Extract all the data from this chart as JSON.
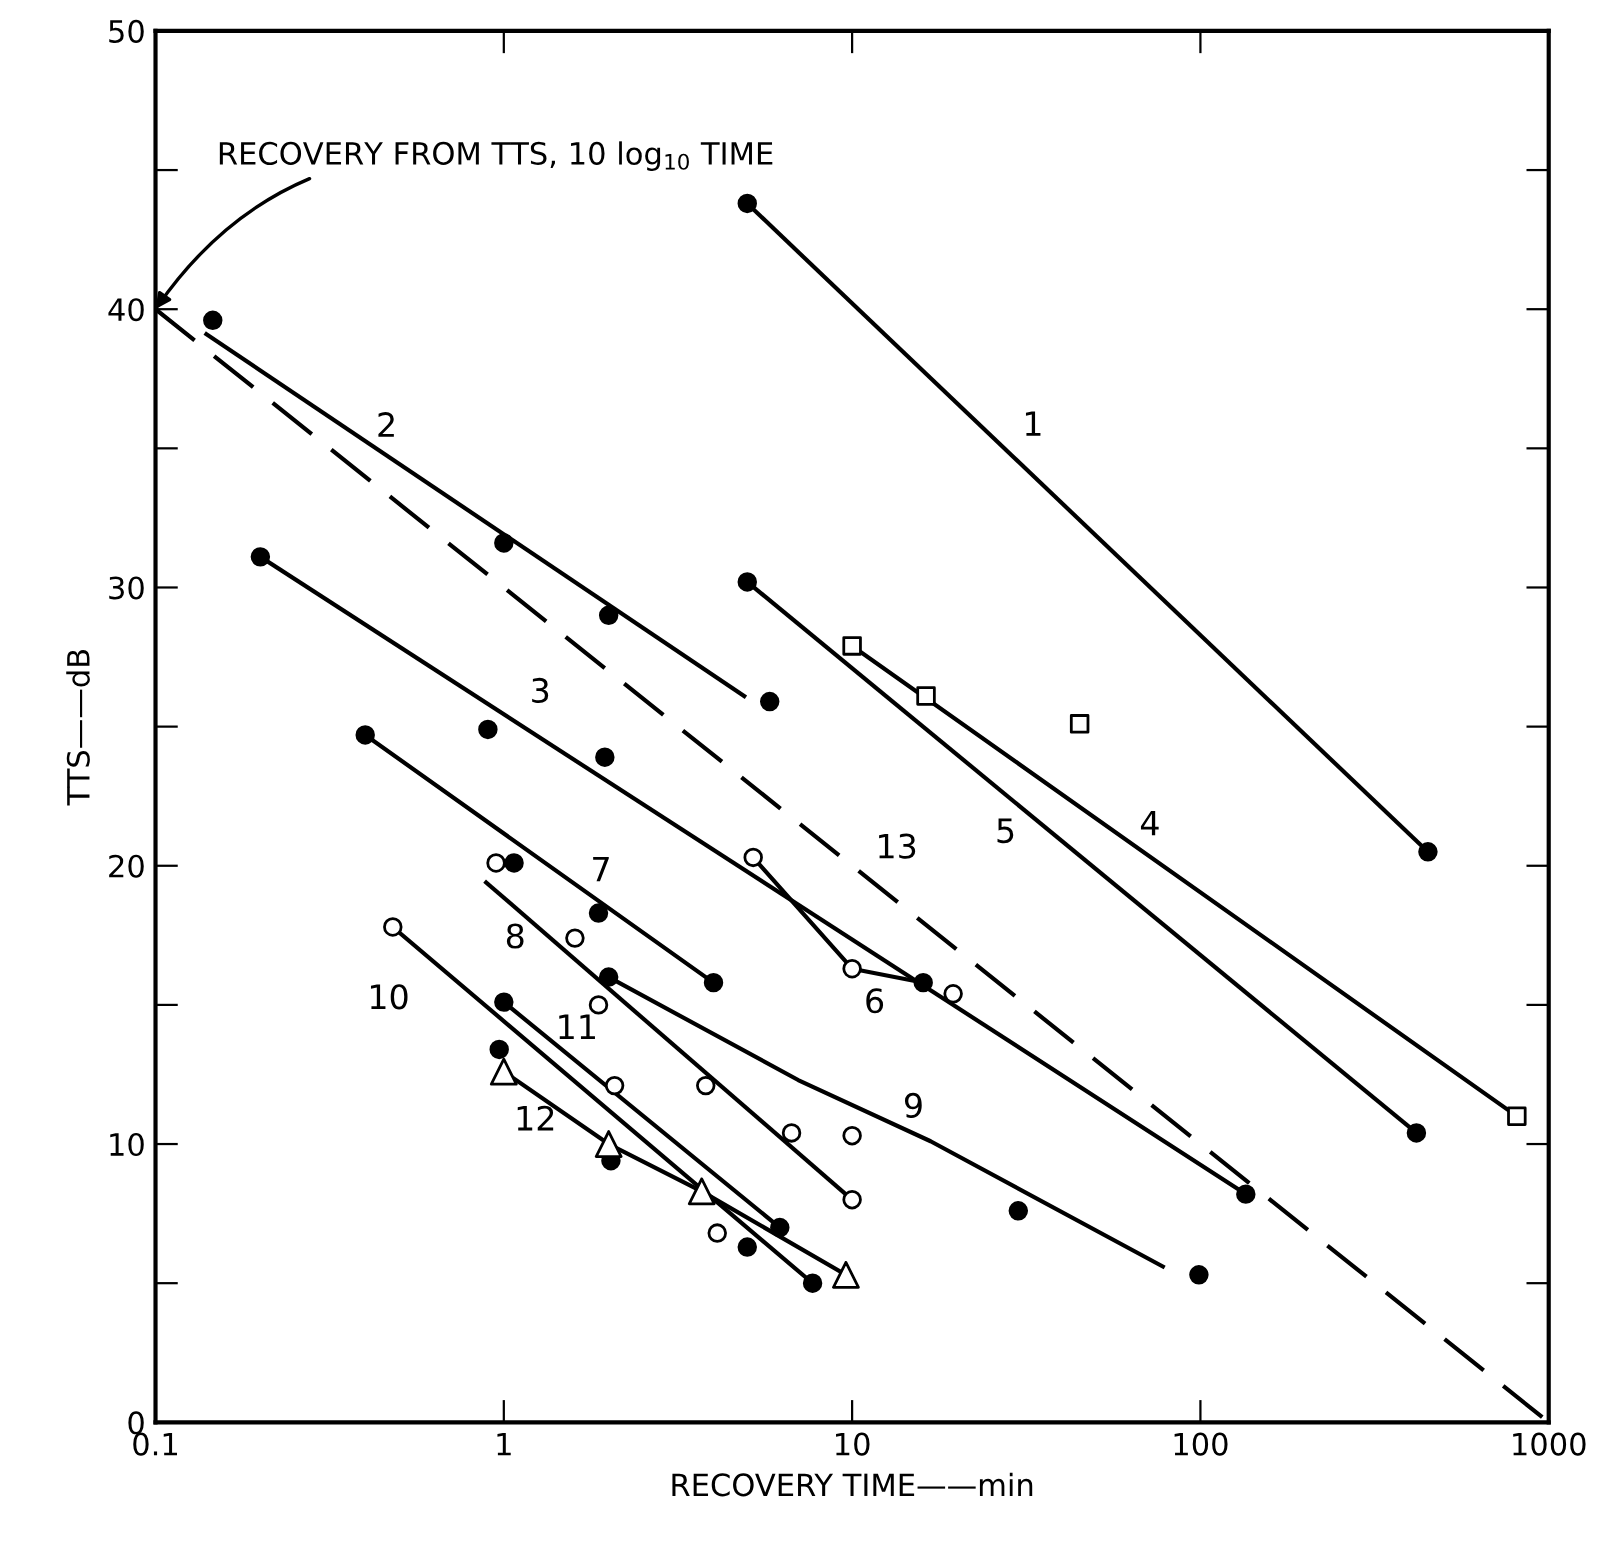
{
  "chart_data": {
    "type": "scatter",
    "xlabel": "RECOVERY TIME——min",
    "ylabel": "TTS——dB",
    "log": "x",
    "xlim": [
      0.1,
      1000
    ],
    "ylim": [
      0,
      50
    ],
    "xticks": [
      {
        "value": 0.1,
        "label": "0.1"
      },
      1,
      10,
      100,
      1000
    ],
    "yticks": [
      0,
      {
        "value": 5,
        "label": null
      },
      10,
      {
        "value": 15,
        "label": null
      },
      20,
      {
        "value": 25,
        "label": null
      },
      30,
      {
        "value": 35,
        "label": null
      },
      40,
      {
        "value": 45,
        "label": null
      },
      50
    ],
    "grid": false,
    "legend": false,
    "series": [
      {
        "type": "line",
        "name": "13",
        "color": "#000000",
        "marker": "none",
        "line_style": "dashed",
        "x": [
          0.1,
          1000
        ],
        "values": [
          40,
          0
        ]
      },
      {
        "type": "line",
        "name": "1",
        "color": "#000000",
        "marker": "none",
        "line_style": "solid",
        "x": [
          5,
          450
        ],
        "values": [
          43.8,
          20.5
        ]
      },
      {
        "type": "line",
        "name": "2",
        "color": "#000000",
        "marker": "none",
        "line_style": "solid",
        "x": [
          0.14,
          4.9
        ],
        "values": [
          39.1,
          26.1
        ]
      },
      {
        "type": "line",
        "name": "3",
        "color": "#000000",
        "marker": "none",
        "line_style": "solid",
        "x": [
          0.2,
          135
        ],
        "values": [
          31.1,
          8.2
        ]
      },
      {
        "type": "line",
        "name": "4",
        "color": "#000000",
        "marker": "none",
        "line_style": "solid",
        "x": [
          10,
          810
        ],
        "values": [
          27.9,
          11.0
        ]
      },
      {
        "type": "line",
        "name": "5",
        "color": "#000000",
        "marker": "none",
        "line_style": "solid",
        "x": [
          5,
          417
        ],
        "values": [
          30.2,
          10.4
        ]
      },
      {
        "type": "line",
        "name": "6",
        "color": "#000000",
        "marker": "none",
        "line_style": "solid",
        "x": [
          5.2,
          10,
          16
        ],
        "values": [
          20.3,
          16.3,
          15.8
        ]
      },
      {
        "type": "line",
        "name": "7",
        "color": "#000000",
        "marker": "none",
        "line_style": "solid",
        "x": [
          0.4,
          4.0
        ],
        "values": [
          24.7,
          15.8
        ]
      },
      {
        "type": "line",
        "name": "8",
        "color": "#000000",
        "marker": "none",
        "line_style": "solid",
        "x": [
          0.89,
          10
        ],
        "values": [
          19.4,
          8.0
        ]
      },
      {
        "type": "line",
        "name": "9",
        "color": "#000000",
        "marker": "none",
        "line_style": "solid",
        "x": [
          2.0,
          7.0,
          16.8,
          78
        ],
        "values": [
          16.0,
          12.3,
          10.1,
          5.6
        ]
      },
      {
        "type": "line",
        "name": "10",
        "color": "#000000",
        "marker": "none",
        "line_style": "solid",
        "x": [
          0.48,
          7.7
        ],
        "values": [
          17.8,
          5.0
        ]
      },
      {
        "type": "line",
        "name": "11",
        "color": "#000000",
        "marker": "none",
        "line_style": "solid",
        "x": [
          1.0,
          6.2
        ],
        "values": [
          15.1,
          7.0
        ]
      },
      {
        "type": "line",
        "name": "12",
        "color": "#000000",
        "marker": "none",
        "line_style": "solid",
        "x": [
          1.0,
          2.0,
          3.7,
          9.6
        ],
        "values": [
          12.6,
          10.0,
          8.3,
          5.3
        ]
      },
      {
        "color": "#000000",
        "marker": "circle",
        "x": [
          5,
          450,
          0.146,
          1.0,
          2.0,
          5.8,
          0.2,
          0.9,
          1.95,
          16,
          135,
          5,
          417,
          0.4,
          4.0,
          1.87,
          1.07,
          2.0,
          30,
          99,
          7.7,
          5.0,
          1.0,
          6.2,
          0.97,
          2.03
        ],
        "values": [
          43.8,
          20.5,
          39.6,
          31.6,
          29.0,
          25.9,
          31.1,
          24.9,
          23.9,
          15.8,
          8.2,
          30.2,
          10.4,
          24.7,
          15.8,
          18.3,
          20.1,
          16.0,
          7.6,
          5.3,
          5.0,
          6.3,
          15.1,
          7.0,
          13.4,
          9.4
        ]
      },
      {
        "color": "#ffffff",
        "marker": "circle",
        "x": [
          5.2,
          10,
          19.5,
          0.95,
          1.6,
          1.87,
          3.8,
          6.7,
          10,
          10,
          0.48,
          4.1,
          2.08
        ],
        "values": [
          20.3,
          16.3,
          15.4,
          20.1,
          17.4,
          15.0,
          12.1,
          10.4,
          10.3,
          8.0,
          17.8,
          6.8,
          12.1
        ]
      },
      {
        "color": "#ffffff",
        "marker": "square",
        "x": [
          10,
          16.3,
          45,
          810
        ],
        "values": [
          27.9,
          26.1,
          25.1,
          11.0
        ]
      },
      {
        "color": "#ffffff",
        "marker": "triangle",
        "x": [
          1.0,
          2.0,
          3.7,
          9.6
        ],
        "values": [
          12.6,
          10.0,
          8.3,
          5.3
        ]
      }
    ],
    "annotations": [
      {
        "text": "RECOVERY FROM TTS, 10 log$_{10}$ TIME",
        "x": 0.1,
        "y": 40
      }
    ]
  }
}
